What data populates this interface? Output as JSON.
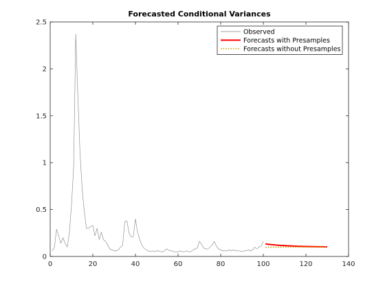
{
  "chart_data": {
    "type": "line",
    "title": "Forecasted Conditional Variances",
    "xlabel": "",
    "ylabel": "",
    "xlim": [
      0,
      140
    ],
    "ylim": [
      0,
      2.5
    ],
    "xticks": [
      0,
      20,
      40,
      60,
      80,
      100,
      120,
      140
    ],
    "yticks": [
      0,
      0.5,
      1,
      1.5,
      2,
      2.5
    ],
    "ytick_labels": [
      "0",
      "0.5",
      "1",
      "1.5",
      "2",
      "2.5"
    ],
    "grid": false,
    "legend_position": "top-right",
    "series": [
      {
        "name": "Observed",
        "color": "#808080",
        "style": "solid",
        "x": [
          1,
          2,
          3,
          4,
          5,
          6,
          7,
          8,
          9,
          10,
          11,
          12,
          13,
          14,
          15,
          16,
          17,
          18,
          19,
          20,
          21,
          22,
          23,
          24,
          25,
          26,
          27,
          28,
          29,
          30,
          31,
          32,
          33,
          34,
          35,
          36,
          37,
          38,
          39,
          40,
          41,
          42,
          43,
          44,
          45,
          46,
          47,
          48,
          49,
          50,
          51,
          52,
          53,
          54,
          55,
          56,
          57,
          58,
          59,
          60,
          61,
          62,
          63,
          64,
          65,
          66,
          67,
          68,
          69,
          70,
          71,
          72,
          73,
          74,
          75,
          76,
          77,
          78,
          79,
          80,
          81,
          82,
          83,
          84,
          85,
          86,
          87,
          88,
          89,
          90,
          91,
          92,
          93,
          94,
          95,
          96,
          97,
          98,
          99,
          100
        ],
        "values": [
          0.06,
          0.1,
          0.29,
          0.22,
          0.14,
          0.2,
          0.14,
          0.1,
          0.25,
          0.55,
          0.95,
          2.37,
          1.7,
          1.1,
          0.72,
          0.48,
          0.3,
          0.3,
          0.32,
          0.33,
          0.22,
          0.3,
          0.18,
          0.26,
          0.18,
          0.16,
          0.12,
          0.08,
          0.07,
          0.06,
          0.06,
          0.07,
          0.1,
          0.12,
          0.37,
          0.38,
          0.25,
          0.21,
          0.21,
          0.4,
          0.26,
          0.18,
          0.12,
          0.09,
          0.07,
          0.06,
          0.05,
          0.06,
          0.05,
          0.06,
          0.06,
          0.05,
          0.05,
          0.07,
          0.08,
          0.06,
          0.06,
          0.05,
          0.05,
          0.05,
          0.06,
          0.05,
          0.05,
          0.06,
          0.05,
          0.05,
          0.07,
          0.08,
          0.09,
          0.16,
          0.13,
          0.09,
          0.08,
          0.08,
          0.1,
          0.12,
          0.16,
          0.11,
          0.08,
          0.07,
          0.06,
          0.06,
          0.06,
          0.07,
          0.06,
          0.07,
          0.06,
          0.06,
          0.06,
          0.05,
          0.06,
          0.06,
          0.07,
          0.06,
          0.07,
          0.1,
          0.08,
          0.1,
          0.11,
          0.16
        ]
      },
      {
        "name": "Forecasts with Presamples",
        "color": "#ff0000",
        "style": "solid",
        "x": [
          101,
          102,
          103,
          104,
          105,
          106,
          107,
          108,
          109,
          110,
          111,
          112,
          113,
          114,
          115,
          116,
          117,
          118,
          119,
          120,
          121,
          122,
          123,
          124,
          125,
          126,
          127,
          128,
          129,
          130
        ],
        "values": [
          0.135,
          0.131,
          0.128,
          0.126,
          0.124,
          0.122,
          0.12,
          0.118,
          0.117,
          0.116,
          0.114,
          0.113,
          0.112,
          0.111,
          0.11,
          0.109,
          0.108,
          0.108,
          0.107,
          0.106,
          0.106,
          0.105,
          0.105,
          0.104,
          0.104,
          0.103,
          0.103,
          0.103,
          0.102,
          0.102
        ]
      },
      {
        "name": "Forecasts without Presamples",
        "color": "#c8a000",
        "style": "dotted",
        "x": [
          101,
          102,
          103,
          104,
          105,
          106,
          107,
          108,
          109,
          110,
          111,
          112,
          113,
          114,
          115,
          116,
          117,
          118,
          119,
          120,
          121,
          122,
          123,
          124,
          125,
          126,
          127,
          128,
          129,
          130
        ],
        "values": [
          0.098,
          0.098,
          0.098,
          0.099,
          0.099,
          0.099,
          0.099,
          0.099,
          0.1,
          0.1,
          0.1,
          0.1,
          0.1,
          0.1,
          0.1,
          0.1,
          0.1,
          0.1,
          0.1,
          0.1,
          0.1,
          0.1,
          0.1,
          0.1,
          0.1,
          0.1,
          0.1,
          0.1,
          0.1,
          0.1
        ]
      }
    ]
  }
}
